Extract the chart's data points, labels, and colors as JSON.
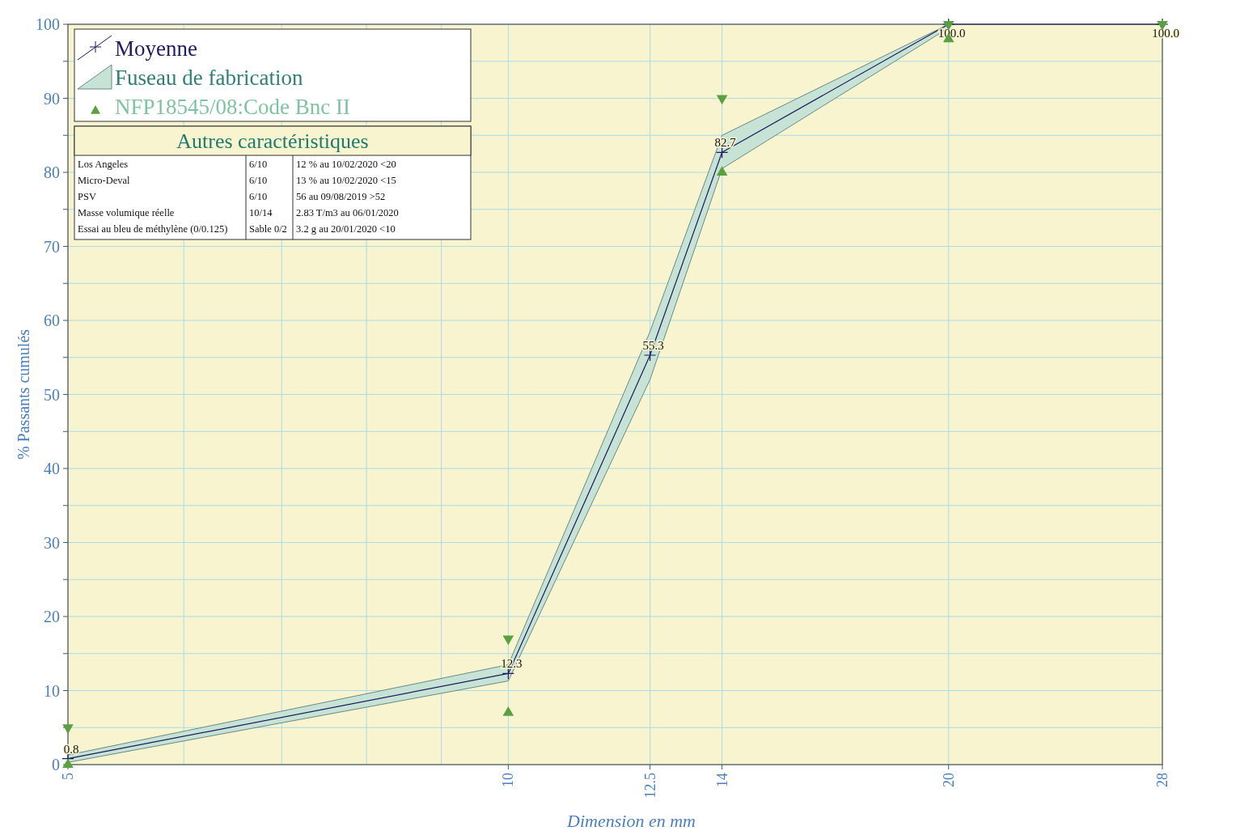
{
  "chart_data": {
    "type": "line",
    "xlabel": "Dimension en mm",
    "ylabel": "% Passants cumulés",
    "log": "x",
    "x": [
      5,
      10,
      12.5,
      14,
      20,
      28
    ],
    "xlim": [
      5,
      28
    ],
    "xticks": [
      5,
      {
        "value": 6,
        "label": null
      },
      {
        "value": 7,
        "label": null
      },
      {
        "value": 8,
        "label": null
      },
      {
        "value": 9,
        "label": null
      },
      10,
      12.5,
      14,
      20,
      28
    ],
    "ylim": [
      0,
      100
    ],
    "yticks": [
      0,
      {
        "value": 5,
        "label": null
      },
      10,
      {
        "value": 15,
        "label": null
      },
      20,
      {
        "value": 25,
        "label": null
      },
      30,
      {
        "value": 35,
        "label": null
      },
      40,
      {
        "value": 45,
        "label": null
      },
      50,
      {
        "value": 55,
        "label": null
      },
      60,
      {
        "value": 65,
        "label": null
      },
      70,
      {
        "value": 75,
        "label": null
      },
      80,
      {
        "value": 85,
        "label": null
      },
      90,
      {
        "value": 95,
        "label": null
      },
      100
    ],
    "grid": true,
    "legend": "top left",
    "series": [
      {
        "name": "Fuseau de fabrication",
        "type": "area",
        "color": "#c6e3d6",
        "values": [
          null,
          null,
          null,
          null,
          null,
          null
        ]
      },
      {
        "name": "Moyenne",
        "type": "line",
        "color": "#1c1c5e",
        "marker": "cross",
        "line_style": "solid",
        "values": [
          0.8,
          12.3,
          55.3,
          82.7,
          100.0,
          100.0
        ],
        "value_labels": [
          "0.8",
          "12.3",
          "55.3",
          "82.7",
          "100.0",
          "100.0"
        ],
        "lower": [
          0.3,
          11.3,
          52,
          80.5,
          99.5,
          null
        ],
        "upper": [
          1.3,
          13.5,
          58.5,
          85,
          100,
          null
        ]
      },
      {
        "name": "NFP18545/08:Code Bnc II",
        "type": "scatter",
        "color": "#5aa040",
        "marker": "triangle",
        "x": [
          5,
          10,
          14,
          20
        ],
        "values": [
          0,
          7,
          80,
          98
        ]
      },
      {
        "type": "scatter",
        "color": "#5aa040",
        "marker": "triangle-down",
        "x": [
          5,
          10,
          14,
          20,
          28
        ],
        "values": [
          5,
          17,
          90,
          100,
          100
        ]
      }
    ],
    "annotations": [
      "Autres caractéristiques",
      "Los Angeles",
      "6/10",
      "12 % au 10/02/2020 <20",
      "Micro-Deval",
      "6/10",
      "13 % au 10/02/2020 <15",
      "PSV",
      "6/10",
      "56 au 09/08/2019 >52",
      "Masse volumique réelle",
      "10/14",
      "2.83 T/m3 au 06/01/2020",
      "Essai au bleu de méthylène (0/0.125)",
      "Sable 0/2",
      "3.2 g au 20/01/2020 <10"
    ]
  }
}
